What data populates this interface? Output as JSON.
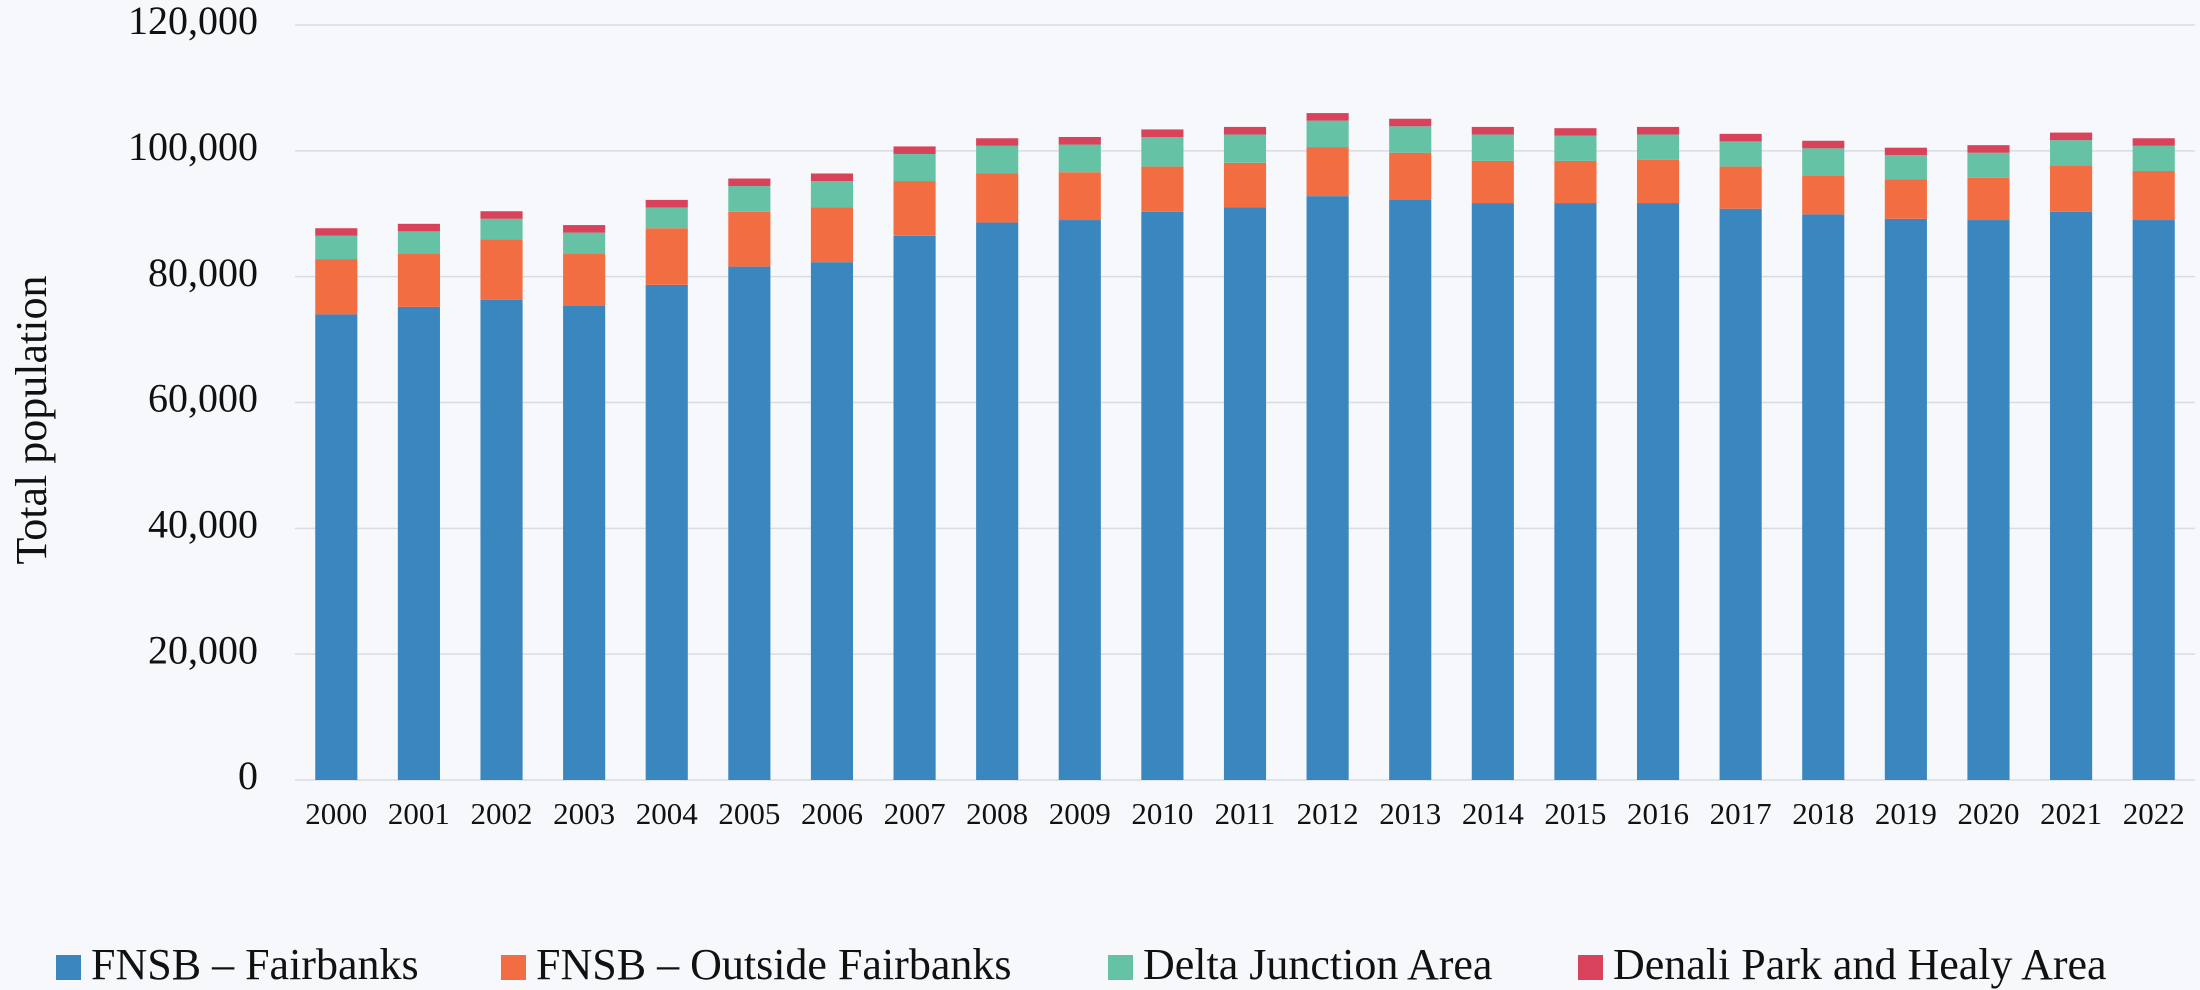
{
  "chart_data": {
    "type": "stacked_bar",
    "y_label": "Total population",
    "categories": [
      "2000",
      "2001",
      "2002",
      "2003",
      "2004",
      "2005",
      "2006",
      "2007",
      "2008",
      "2009",
      "2010",
      "2011",
      "2012",
      "2013",
      "2014",
      "2015",
      "2016",
      "2017",
      "2018",
      "2019",
      "2020",
      "2021",
      "2022"
    ],
    "series": [
      {
        "name": "FNSB – Fairbanks",
        "color": "#3a87bf",
        "values": [
          74000,
          75200,
          76300,
          75400,
          78700,
          81600,
          82300,
          86500,
          88600,
          89000,
          90300,
          91000,
          92800,
          92300,
          91700,
          91700,
          91700,
          90800,
          89900,
          89200,
          89000,
          90300,
          89000
        ]
      },
      {
        "name": "FNSB – Outside Fairbanks",
        "color": "#f26e42",
        "values": [
          8800,
          8400,
          9600,
          8200,
          9000,
          8700,
          8700,
          8700,
          7800,
          7600,
          7200,
          7100,
          7800,
          7400,
          6700,
          6700,
          6900,
          6700,
          6200,
          6300,
          6700,
          7400,
          7800
        ]
      },
      {
        "name": "Delta Junction Area",
        "color": "#66c2a5",
        "values": [
          3700,
          3600,
          3300,
          3400,
          3300,
          4100,
          4200,
          4300,
          4400,
          4400,
          4700,
          4500,
          4200,
          4200,
          4200,
          4000,
          4000,
          4000,
          4300,
          3800,
          4000,
          4000,
          4000
        ]
      },
      {
        "name": "Denali Park and Healy Area",
        "color": "#d9425b",
        "values": [
          1200,
          1200,
          1200,
          1200,
          1200,
          1200,
          1200,
          1200,
          1200,
          1200,
          1200,
          1200,
          1200,
          1200,
          1200,
          1200,
          1200,
          1200,
          1200,
          1200,
          1200,
          1200,
          1200
        ]
      }
    ],
    "ylim": [
      0,
      120000
    ],
    "yticks": [
      0,
      {
        "value": 20000,
        "label": "20,000"
      },
      {
        "value": 40000,
        "label": "40,000"
      },
      {
        "value": 60000,
        "label": "60,000"
      },
      {
        "value": 80000,
        "label": "80,000"
      },
      {
        "value": 100000,
        "label": "100,000"
      },
      {
        "value": 120000,
        "label": "120,000"
      }
    ],
    "grid": true,
    "legend": "bottom"
  }
}
